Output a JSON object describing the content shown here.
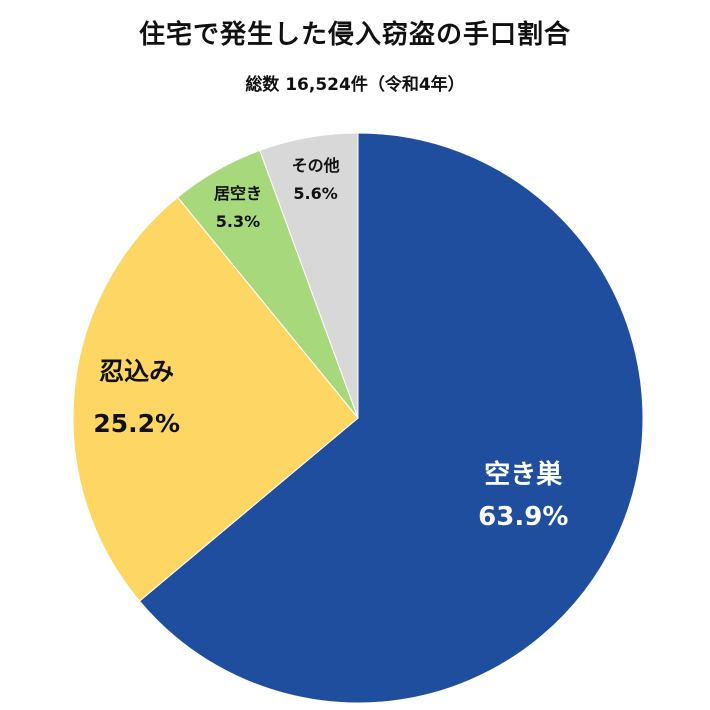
{
  "title": "住宅で発生した侵入窃盗の手口割合",
  "subtitle": "総数 16,524件（令和4年）",
  "chart_data": {
    "type": "pie",
    "title": "住宅で発生した侵入窃盗の手口割合",
    "subtitle": "総数 16,524件（令和4年）",
    "slices": [
      {
        "label": "空き巣",
        "value": 63.9,
        "value_label": "63.9%",
        "color": "#1f4e9f",
        "text_color": "#ffffff"
      },
      {
        "label": "忍込み",
        "value": 25.2,
        "value_label": "25.2%",
        "color": "#fdd664",
        "text_color": "#111111"
      },
      {
        "label": "居空き",
        "value": 5.3,
        "value_label": "5.3%",
        "color": "#a8d87c",
        "text_color": "#111111"
      },
      {
        "label": "その他",
        "value": 5.6,
        "value_label": "5.6%",
        "color": "#d8d8d8",
        "text_color": "#111111"
      }
    ]
  }
}
